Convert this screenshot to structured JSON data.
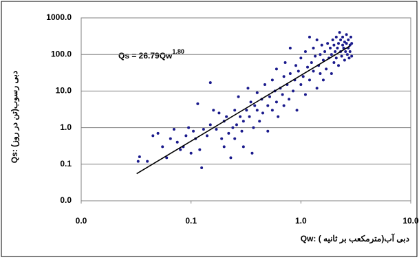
{
  "chart_data": {
    "type": "scatter",
    "annotation": "Qs = 26.79Qw",
    "annotation_exponent": "1.80",
    "x_label": "Qw: دبی آب(مترمکعب بر ثانیه )",
    "y_label": "Qs: دبی رسوب(تن در روز)",
    "log_x": true,
    "log_y": true,
    "grid": true,
    "xlim": [
      0.01,
      10
    ],
    "ylim": [
      0.01,
      1000
    ],
    "xticks": [
      {
        "value": 0.01,
        "label": "0.0"
      },
      0.1,
      {
        "value": 1,
        "label": "1.0"
      },
      {
        "value": 10,
        "label": "10.0"
      }
    ],
    "yticks": [
      {
        "value": 0.01,
        "label": "0.0"
      },
      0.1,
      {
        "value": 1,
        "label": "1.0"
      },
      {
        "value": 10,
        "label": "10.0"
      },
      {
        "value": 100,
        "label": "100.0"
      },
      {
        "value": 1000,
        "label": "1000.0"
      }
    ],
    "series": [
      {
        "color": "#1a1a8c",
        "x": [
          0.033,
          0.034,
          0.04,
          0.045,
          0.05,
          0.055,
          0.06,
          0.065,
          0.07,
          0.075,
          0.08,
          0.085,
          0.09,
          0.095,
          0.1,
          0.105,
          0.11,
          0.115,
          0.12,
          0.125,
          0.13,
          0.14,
          0.15,
          0.15,
          0.16,
          0.17,
          0.18,
          0.19,
          0.2,
          0.2,
          0.21,
          0.22,
          0.23,
          0.24,
          0.25,
          0.25,
          0.26,
          0.27,
          0.28,
          0.29,
          0.3,
          0.3,
          0.32,
          0.33,
          0.34,
          0.35,
          0.36,
          0.37,
          0.38,
          0.4,
          0.4,
          0.42,
          0.44,
          0.45,
          0.47,
          0.5,
          0.5,
          0.52,
          0.55,
          0.55,
          0.58,
          0.6,
          0.6,
          0.62,
          0.65,
          0.68,
          0.7,
          0.7,
          0.72,
          0.75,
          0.78,
          0.8,
          0.8,
          0.85,
          0.88,
          0.9,
          0.92,
          0.95,
          1.0,
          1.0,
          1.05,
          1.1,
          1.1,
          1.15,
          1.2,
          1.2,
          1.25,
          1.3,
          1.3,
          1.35,
          1.4,
          1.4,
          1.45,
          1.5,
          1.5,
          1.55,
          1.6,
          1.6,
          1.65,
          1.7,
          1.75,
          1.8,
          1.85,
          1.9,
          1.9,
          1.95,
          2.0,
          2.0,
          2.05,
          2.1,
          2.1,
          2.15,
          2.2,
          2.2,
          2.25,
          2.3,
          2.3,
          2.35,
          2.4,
          2.4,
          2.45,
          2.5,
          2.5,
          2.55,
          2.6,
          2.6,
          2.65,
          2.7,
          2.7,
          2.75,
          2.8,
          2.8,
          2.85,
          2.9,
          2.9
        ],
        "values": [
          0.12,
          0.16,
          0.12,
          0.6,
          0.7,
          0.3,
          0.15,
          0.5,
          0.9,
          0.4,
          0.25,
          0.3,
          0.6,
          1.0,
          0.2,
          0.8,
          0.5,
          4.5,
          0.25,
          0.08,
          0.9,
          0.6,
          1.2,
          17,
          3,
          0.9,
          2.5,
          0.5,
          1.5,
          0.3,
          2,
          0.7,
          0.15,
          1,
          3,
          0.5,
          1.2,
          7,
          2,
          0.8,
          1.5,
          0.3,
          3,
          12,
          2,
          5,
          0.2,
          1,
          4,
          3,
          9,
          1.5,
          6,
          2.5,
          15,
          4,
          0.8,
          7,
          20,
          3,
          10,
          5,
          40,
          2,
          12,
          8,
          25,
          4,
          60,
          15,
          6,
          30,
          150,
          10,
          20,
          50,
          3,
          35,
          15,
          80,
          25,
          120,
          8,
          45,
          300,
          20,
          60,
          35,
          150,
          90,
          12,
          250,
          50,
          100,
          30,
          180,
          70,
          20,
          120,
          40,
          200,
          80,
          150,
          30,
          100,
          250,
          60,
          180,
          120,
          300,
          80,
          150,
          200,
          50,
          400,
          120,
          250,
          90,
          180,
          300,
          150,
          220,
          70,
          120,
          350,
          200,
          100,
          250,
          150,
          80,
          180,
          120,
          300,
          90,
          200
        ]
      },
      {
        "color": "#000000",
        "line": true,
        "x": [
          0.032,
          2.8
        ],
        "values": [
          0.055,
          171
        ]
      }
    ]
  }
}
